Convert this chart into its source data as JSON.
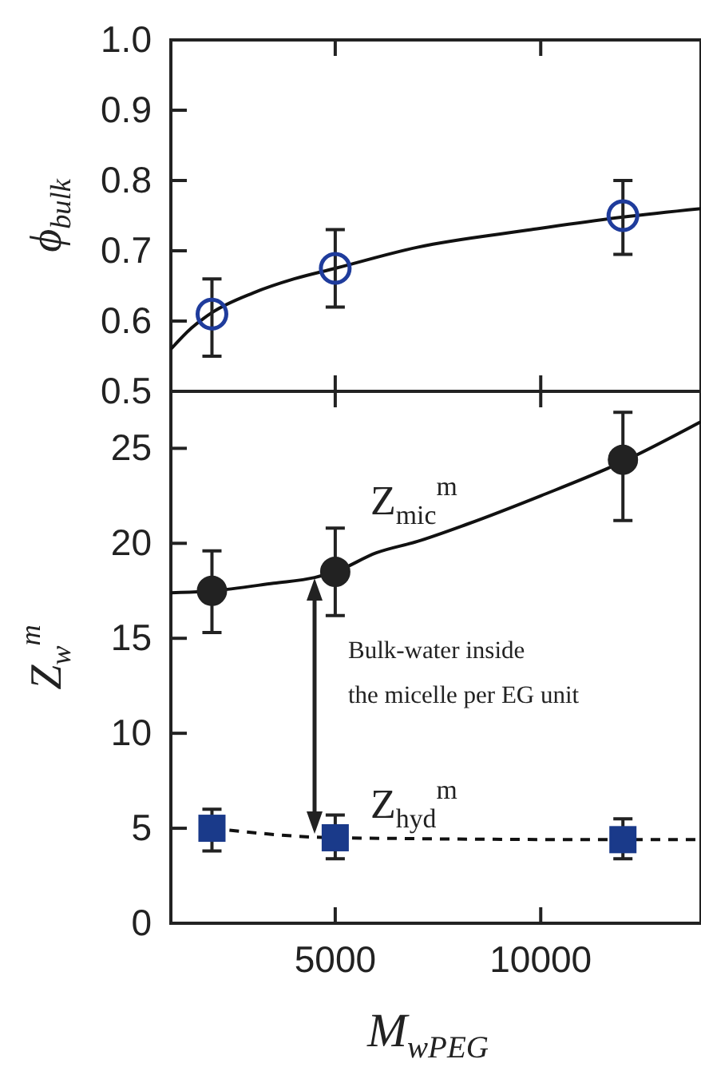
{
  "chart_data": [
    {
      "type": "scatter",
      "ylabel": "ϕ$_{bulk}$",
      "xlim": [
        1000,
        13900
      ],
      "xticks": [
        {
          "value": 5000,
          "label": null
        },
        {
          "value": 10000,
          "label": null
        }
      ],
      "ylim": [
        0.5,
        1.0
      ],
      "yticks": [
        {
          "value": 0.5,
          "label": "0.5"
        },
        {
          "value": 0.6,
          "label": "0.6"
        },
        {
          "value": 0.7,
          "label": "0.7"
        },
        {
          "value": 0.8,
          "label": "0.8"
        },
        {
          "value": 0.9,
          "label": "0.9"
        },
        {
          "value": 1.0,
          "label": "1.0"
        }
      ],
      "tick_labels": "y",
      "grid": false,
      "series": [
        {
          "type": "line",
          "color": "#111111",
          "line_style": "solid",
          "marker": "none",
          "x": [
            1000,
            1500,
            2000,
            3000,
            4000,
            5000,
            7000,
            9770,
            12000,
            13900
          ],
          "values": [
            0.56,
            0.59,
            0.612,
            0.64,
            0.66,
            0.675,
            0.705,
            0.73,
            0.748,
            0.76
          ]
        },
        {
          "color": "#1f3c9c",
          "marker": "circle",
          "x": [
            2000,
            5000,
            12000
          ],
          "values": [
            0.61,
            0.675,
            0.75
          ],
          "errors": [
            [
              0.55,
              0.66
            ],
            [
              0.62,
              0.73
            ],
            [
              0.695,
              0.8
            ]
          ]
        }
      ]
    },
    {
      "type": "scatter",
      "xlabel": "M$_{wPEG}$",
      "ylabel": "Z$_{w}$$^{m}$",
      "xlim": [
        1000,
        13900
      ],
      "xticks": [
        5000,
        10000
      ],
      "ylim": [
        0,
        28
      ],
      "yticks": [
        0,
        5,
        10,
        15,
        20,
        25
      ],
      "grid": false,
      "annotations": [
        "Z$_{mic}$$^{m}$",
        "Z$_{hyd}$$^{m}$",
        "Bulk-water inside the micelle per EG unit"
      ],
      "series": [
        {
          "type": "line",
          "color": "#111111",
          "line_style": "solid",
          "marker": "none",
          "x": [
            1000,
            2000,
            3500,
            4500,
            5000,
            6000,
            7000,
            8200,
            10000,
            12000,
            13900
          ],
          "values": [
            17.4,
            17.5,
            17.9,
            18.2,
            18.5,
            19.5,
            20.1,
            21.0,
            22.5,
            24.3,
            26.4
          ]
        },
        {
          "type": "line",
          "color": "#111111",
          "line_style": "dashed",
          "marker": "none",
          "x": [
            2000,
            5000,
            12000,
            13900
          ],
          "values": [
            5.0,
            4.5,
            4.4,
            4.4
          ]
        },
        {
          "color": "#222222",
          "marker": "circle",
          "x": [
            2000,
            5000,
            12000
          ],
          "values": [
            17.5,
            18.5,
            24.4
          ],
          "errors": [
            [
              15.3,
              19.6
            ],
            [
              16.2,
              20.8
            ],
            [
              21.2,
              26.9
            ]
          ]
        },
        {
          "color": "#1a3a8a",
          "marker": "square",
          "x": [
            2000,
            5000,
            12000
          ],
          "values": [
            5.0,
            4.5,
            4.4
          ],
          "errors": [
            [
              3.8,
              6.0
            ],
            [
              3.4,
              5.7
            ],
            [
              3.4,
              5.5
            ]
          ]
        }
      ]
    }
  ]
}
